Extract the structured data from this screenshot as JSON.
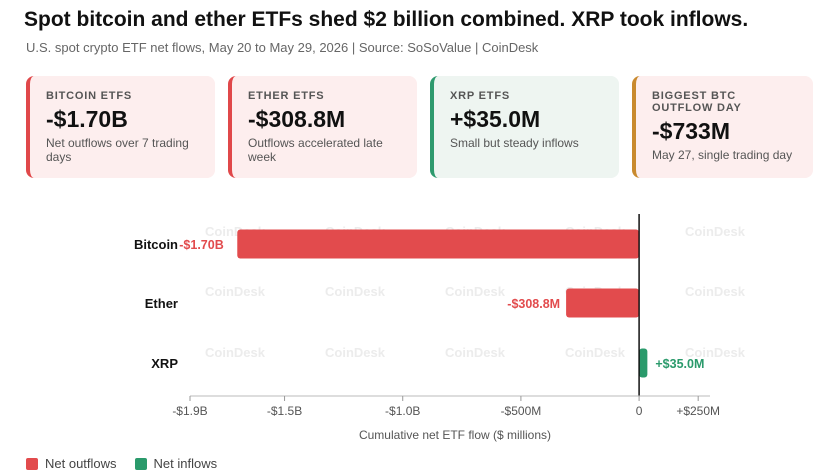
{
  "title": "Spot bitcoin and ether ETFs shed $2 billion combined. XRP took inflows.",
  "subtitle": "U.S. spot crypto ETF net flows, May 20 to May 29, 2026 | Source: SoSoValue | CoinDesk",
  "cards": [
    {
      "label": "BITCOIN ETFS",
      "value": "-$1.70B",
      "note": "Net outflows over 7 trading days",
      "accent": "#e0484a"
    },
    {
      "label": "ETHER ETFS",
      "value": "-$308.8M",
      "note": "Outflows accelerated late week",
      "accent": "#e0484a"
    },
    {
      "label": "XRP ETFS",
      "value": "+$35.0M",
      "note": "Small but steady inflows",
      "accent": "#2e9a6e"
    },
    {
      "label": "BIGGEST BTC OUTFLOW DAY",
      "value": "-$733M",
      "note": "May 27, single trading day",
      "accent": "#c98a2e"
    }
  ],
  "watermark": "CoinDesk",
  "colors": {
    "outflow": "#e24b4d",
    "inflow": "#2a9a6b"
  },
  "legend": [
    {
      "label": "Net outflows",
      "color": "#e24b4d"
    },
    {
      "label": "Net inflows",
      "color": "#2a9a6b"
    }
  ],
  "chart_data": {
    "type": "bar",
    "orientation": "horizontal",
    "categories": [
      "Bitcoin",
      "Ether",
      "XRP"
    ],
    "values": [
      -1700,
      -308.8,
      35.0
    ],
    "data_labels": [
      "-$1.70B",
      "-$308.8M",
      "+$35.0M"
    ],
    "xlabel": "Cumulative net ETF flow ($ millions)",
    "ylabel": "",
    "xlim": [
      -1900,
      300
    ],
    "ticks": [
      -1900,
      -1500,
      -1000,
      -500,
      0,
      250
    ],
    "tick_labels": [
      "-$1.9B",
      "-$1.5B",
      "-$1.0B",
      "-$500M",
      "0",
      "+$250M"
    ],
    "legend_position": "bottom-left",
    "grid": false
  }
}
